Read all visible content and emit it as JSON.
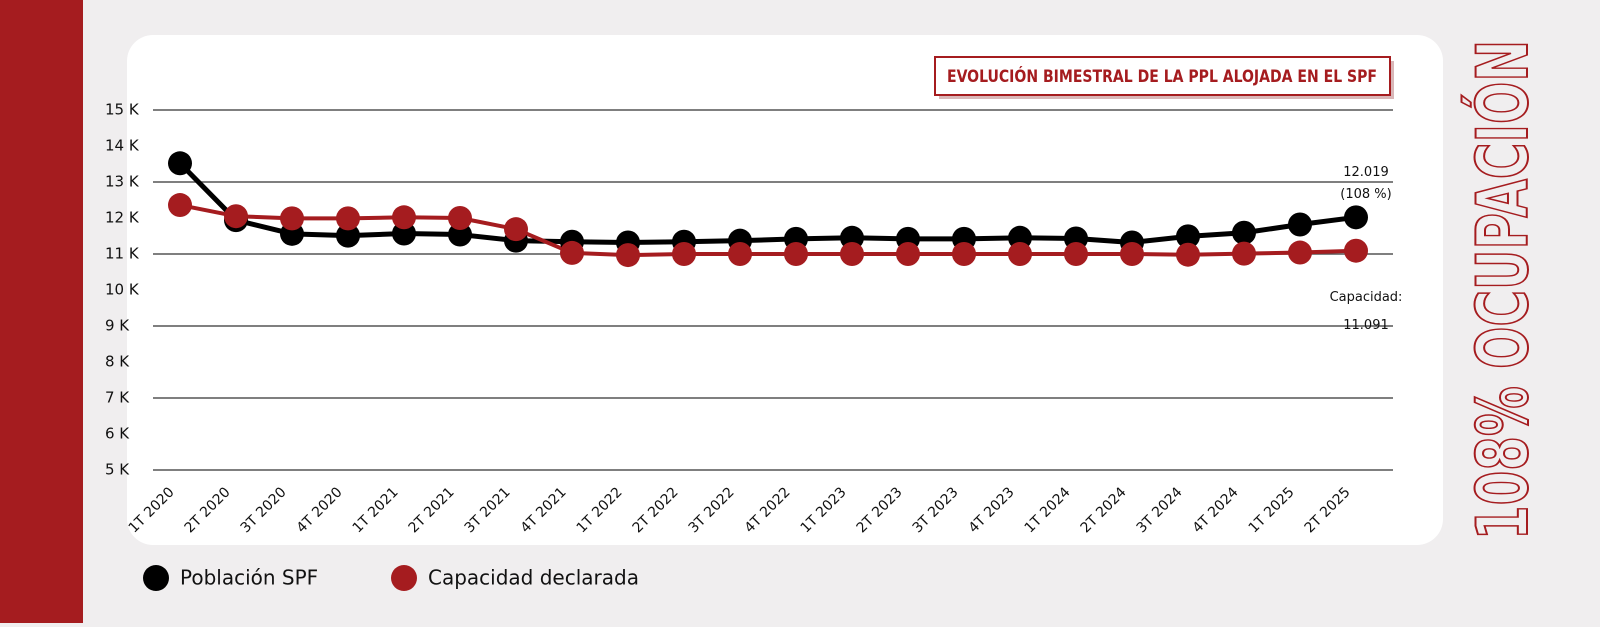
{
  "chart_data": {
    "type": "line",
    "title": "EVOLUCIÓN BIMESTRAL DE LA PPL ALOJADA EN EL SPF",
    "side_title": "108% OCUPACIÓN",
    "categories": [
      "1T 2020",
      "2T 2020",
      "3T 2020",
      "4T 2020",
      "1T 2021",
      "2T 2021",
      "3T 2021",
      "4T 2021",
      "1T 2022",
      "2T 2022",
      "3T 2022",
      "4T 2022",
      "1T 2023",
      "2T 2023",
      "3T 2023",
      "4T 2023",
      "1T 2024",
      "2T 2024",
      "3T 2024",
      "4T 2024",
      "1T 2025",
      "2T 2025"
    ],
    "series": [
      {
        "name": "Población SPF",
        "color": "#000000",
        "values": [
          13520,
          11940,
          11560,
          11510,
          11570,
          11540,
          11370,
          11340,
          11320,
          11340,
          11370,
          11420,
          11450,
          11420,
          11420,
          11450,
          11430,
          11320,
          11490,
          11590,
          11820,
          12019
        ],
        "value_labels": [
          null,
          null,
          null,
          null,
          null,
          null,
          null,
          null,
          null,
          null,
          null,
          null,
          null,
          null,
          null,
          null,
          null,
          null,
          null,
          null,
          null,
          "12.019"
        ]
      },
      {
        "name": "Capacidad declarada",
        "color": "#a51c1f",
        "values": [
          12360,
          12050,
          11990,
          11990,
          12020,
          12000,
          11690,
          11030,
          10970,
          11000,
          11000,
          11000,
          11000,
          11000,
          11000,
          11000,
          11000,
          11000,
          10980,
          11010,
          11040,
          11091
        ],
        "value_labels": [
          null,
          null,
          null,
          null,
          null,
          null,
          null,
          null,
          null,
          null,
          null,
          null,
          null,
          null,
          null,
          null,
          null,
          null,
          null,
          null,
          null,
          "11.091"
        ]
      }
    ],
    "annotations": [
      "(108 %)",
      "Capacidad:"
    ],
    "ylim": [
      5000,
      15000
    ],
    "yticks": [
      {
        "value": 15000,
        "label": "15 K"
      },
      {
        "value": 14000,
        "label": "14 K"
      },
      {
        "value": 13000,
        "label": "13 K"
      },
      {
        "value": 12000,
        "label": "12 K"
      },
      {
        "value": 11000,
        "label": "11 K"
      },
      {
        "value": 10000,
        "label": "10 K"
      },
      {
        "value": 9000,
        "label": "9 K"
      },
      {
        "value": 8000,
        "label": "8 K"
      },
      {
        "value": 7000,
        "label": "7 K"
      },
      {
        "value": 6000,
        "label": "6 K"
      },
      {
        "value": 5000,
        "label": "5 K"
      }
    ],
    "grid": true,
    "legend": "bottom-left"
  }
}
